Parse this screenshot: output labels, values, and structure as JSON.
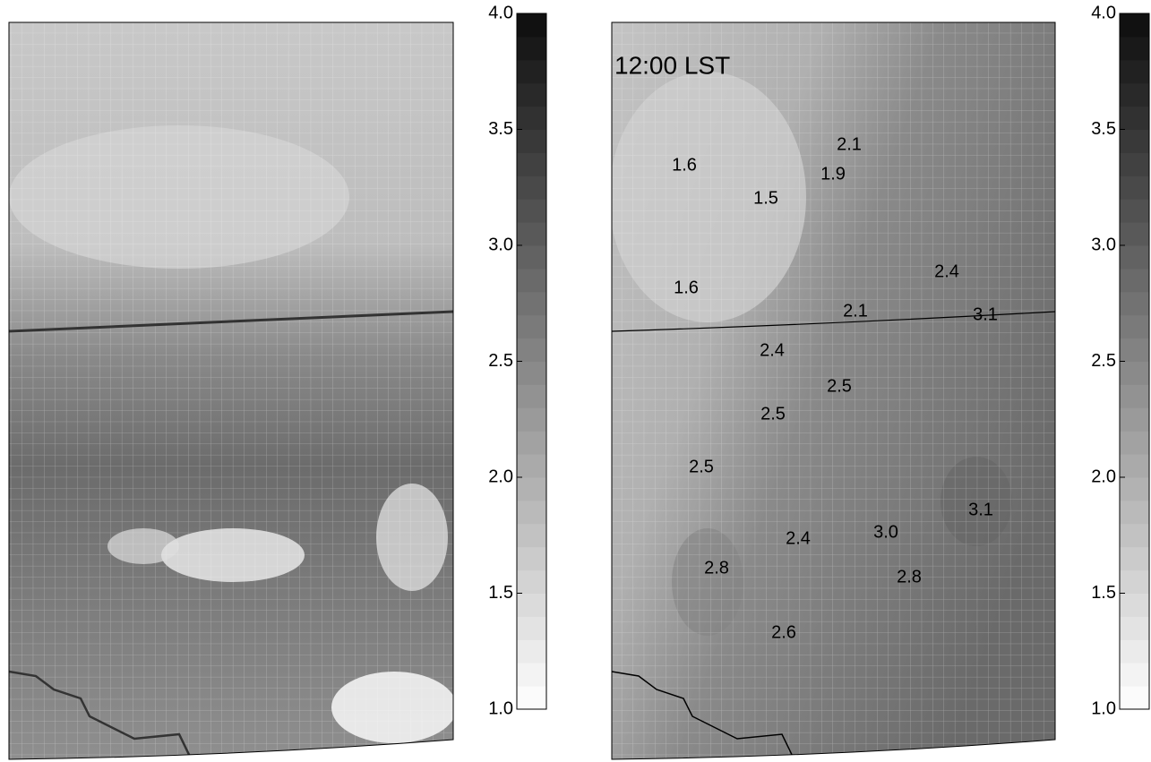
{
  "panels": [
    {
      "colorbar": {
        "range": [
          1,
          4
        ],
        "ticks": [
          {
            "value": 1,
            "label": "1.0"
          },
          {
            "value": 1.5,
            "label": "1.5"
          },
          {
            "value": 2,
            "label": "2.0"
          },
          {
            "value": 2.5,
            "label": "2.5"
          },
          {
            "value": 3,
            "label": "3.0"
          },
          {
            "value": 3.5,
            "label": "3.5"
          },
          {
            "value": 4,
            "label": "4.0"
          }
        ]
      }
    },
    {
      "annotation": "12:00 LST",
      "contour_labels": [
        "2.1",
        "1.6",
        "1.9",
        "1.5",
        "2.4",
        "1.6",
        "2.1",
        "3.1",
        "2.4",
        "2.5",
        "2.5",
        "2.5",
        "3.1",
        "3.0",
        "2.4",
        "2.8",
        "2.8",
        "2.6"
      ],
      "colorbar": {
        "range": [
          1,
          4
        ],
        "ticks": [
          {
            "value": 1,
            "label": "1.0"
          },
          {
            "value": 1.5,
            "label": "1.5"
          },
          {
            "value": 2,
            "label": "2.0"
          },
          {
            "value": 2.5,
            "label": "2.5"
          },
          {
            "value": 3,
            "label": "3.0"
          },
          {
            "value": 3.5,
            "label": "3.5"
          },
          {
            "value": 4,
            "label": "4.0"
          }
        ]
      }
    }
  ]
}
